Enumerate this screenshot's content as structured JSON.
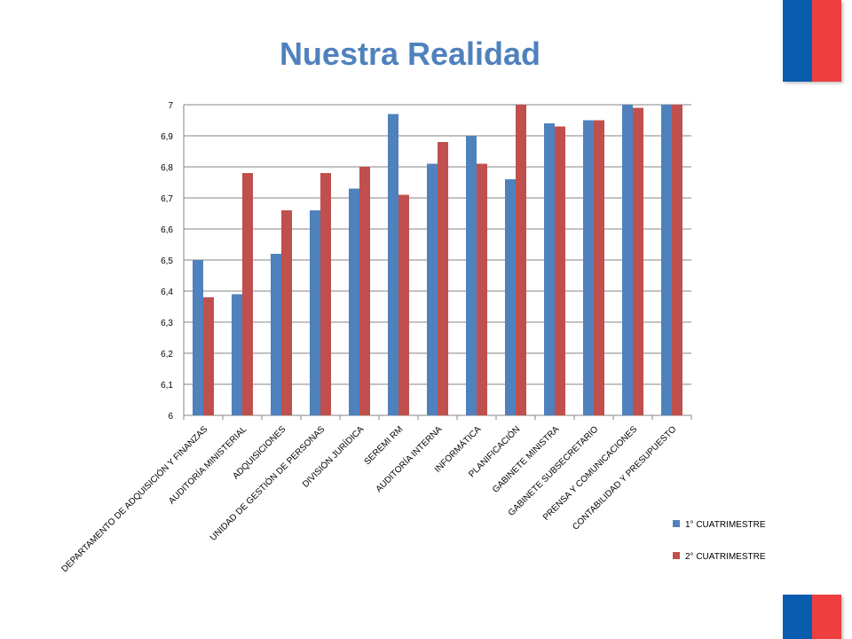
{
  "page": {
    "title": "Nuestra Realidad"
  },
  "colors": {
    "title": "#4f81bd",
    "flag_blue": "#0a5cae",
    "flag_red": "#ee3e3e",
    "series1": "#4f81bd",
    "series2": "#c0504d",
    "grid": "#868686"
  },
  "chart_data": {
    "type": "bar",
    "title": "",
    "xlabel": "",
    "ylabel": "",
    "ylim": [
      6,
      7
    ],
    "yticks": [
      "6",
      "6,1",
      "6,2",
      "6,3",
      "6,4",
      "6,5",
      "6,6",
      "6,7",
      "6,8",
      "6,9",
      "7"
    ],
    "grid": true,
    "legend_position": "bottom-right",
    "categories": [
      "DEPARTAMENTO DE ADQUISICIÓN Y FINANZAS",
      "AUDITORÍA MINISTERIAL",
      "ADQUISICIONES",
      "UNIDAD DE GESTIÓN DE PERSONAS",
      "DIVISIÓN JURÍDICA",
      "SEREMI RM",
      "AUDITORÍA INTERNA",
      "INFORMÁTICA",
      "PLANIFICACIÓN",
      "GABINETE MINISTRA",
      "GABINETE SUBSECRETARIO",
      "PRENSA Y COMUNICACIONES",
      "CONTABILIDAD Y PRESUPUESTO"
    ],
    "series": [
      {
        "name": "1° CUATRIMESTRE",
        "values": [
          6.5,
          6.39,
          6.52,
          6.66,
          6.73,
          6.97,
          6.81,
          6.9,
          6.76,
          6.94,
          6.95,
          7.0,
          7.0
        ]
      },
      {
        "name": "2° CUATRIMESTRE",
        "values": [
          6.38,
          6.78,
          6.66,
          6.78,
          6.8,
          6.71,
          6.88,
          6.81,
          7.0,
          6.93,
          6.95,
          6.99,
          7.0
        ]
      }
    ]
  }
}
